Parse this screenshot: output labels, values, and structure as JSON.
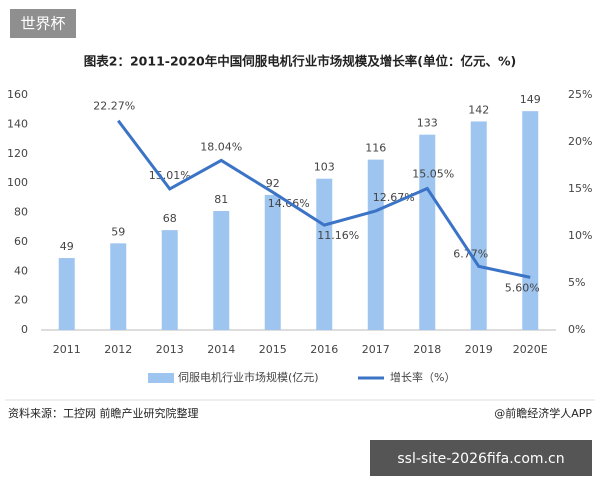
{
  "badge": "世界杯",
  "chart_data": {
    "type": "bar",
    "title": "图表2：2011-2020年中国伺服电机行业市场规模及增长率(单位：亿元、%)",
    "categories": [
      "2011",
      "2012",
      "2013",
      "2014",
      "2015",
      "2016",
      "2017",
      "2018",
      "2019",
      "2020E"
    ],
    "series": [
      {
        "name": "伺服电机行业市场规模(亿元)",
        "type": "bar",
        "color": "#9ec5f0",
        "axis": "y",
        "values": [
          49,
          59,
          68,
          81,
          92,
          103,
          116,
          133,
          142,
          149
        ]
      },
      {
        "name": "增长率（%）",
        "type": "line",
        "color": "#3b73c6",
        "axis": "y2",
        "values": [
          null,
          22.27,
          15.01,
          18.04,
          14.66,
          11.16,
          12.67,
          15.05,
          6.77,
          5.6
        ],
        "value_labels": [
          null,
          "22.27%",
          "15.01%",
          "18.04%",
          "14.66%",
          "11.16%",
          "12.67%",
          "15.05%",
          "6.77%",
          "5.60%"
        ]
      }
    ],
    "ylim": [
      0,
      160
    ],
    "yticks": [
      0,
      20,
      40,
      60,
      80,
      100,
      120,
      140,
      160
    ],
    "y2lim": [
      0,
      25
    ],
    "y2ticks": [
      {
        "value": 0,
        "label": "0%"
      },
      {
        "value": 5,
        "label": "5%"
      },
      {
        "value": 10,
        "label": "10%"
      },
      {
        "value": 15,
        "label": "15%"
      },
      {
        "value": 20,
        "label": "20%"
      },
      {
        "value": 25,
        "label": "25%"
      }
    ],
    "legend": "bottom"
  },
  "footer": {
    "source": "资料来源：工控网 前瞻产业研究院整理",
    "brand": "@前瞻经济学人APP"
  },
  "watermark": "ssl-site-2026fifa.com.cn"
}
